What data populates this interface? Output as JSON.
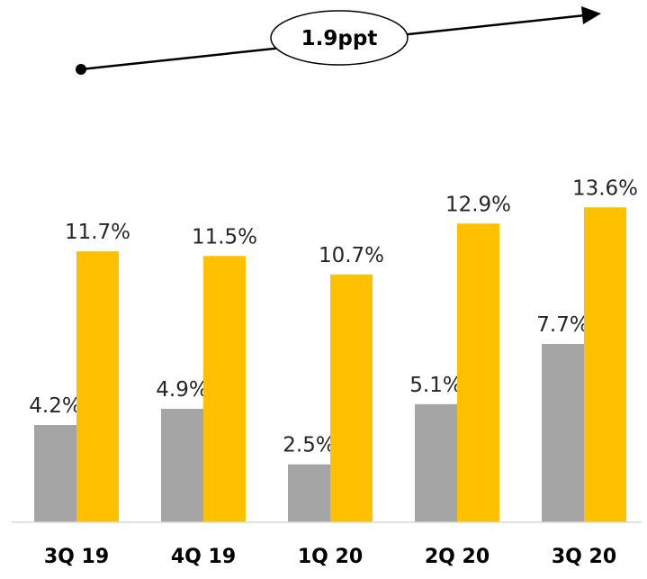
{
  "chart_data": {
    "type": "bar",
    "categories": [
      "3Q 19",
      "4Q 19",
      "1Q 20",
      "2Q 20",
      "3Q 20"
    ],
    "series": [
      {
        "values": [
          4.2,
          4.9,
          2.5,
          5.1,
          7.7
        ],
        "value_labels": [
          "4.2%",
          "4.9%",
          "2.5%",
          "5.1%",
          "7.7%"
        ],
        "color": "#a5a5a5"
      },
      {
        "values": [
          11.7,
          11.5,
          10.7,
          12.9,
          13.6
        ],
        "value_labels": [
          "11.7%",
          "11.5%",
          "10.7%",
          "12.9%",
          "13.6%"
        ],
        "color": "#ffc000"
      }
    ],
    "ylim": [
      0,
      17.5
    ],
    "grid": false,
    "legend": "none",
    "annotation": {
      "label": "1.9ppt",
      "style": "ellipse callout on rising arrow"
    }
  }
}
